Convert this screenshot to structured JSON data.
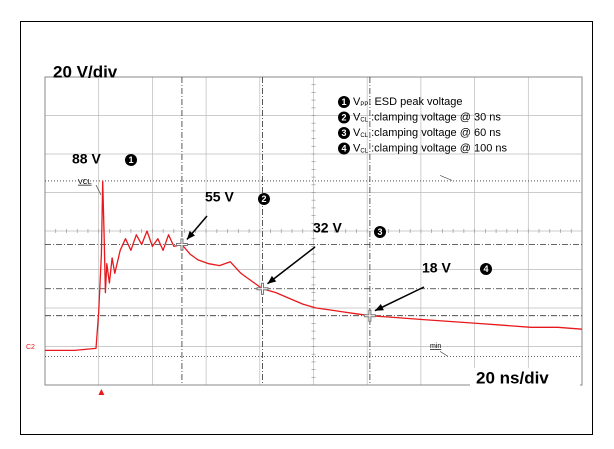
{
  "chart_data": {
    "type": "line",
    "y_scale_label": "20 V/div",
    "x_scale_label": "20 ns/div",
    "xlim": [
      -21,
      179
    ],
    "ylim": [
      -18,
      142
    ],
    "x": [
      -21,
      -10,
      -2,
      -1,
      0,
      0.5,
      1,
      1.5,
      2,
      3,
      4,
      5,
      7,
      9,
      11,
      13,
      15,
      17,
      19,
      21,
      23,
      25,
      27,
      30,
      33,
      36,
      40,
      44,
      48,
      52,
      56,
      60,
      65,
      70,
      75,
      80,
      85,
      90,
      95,
      100,
      110,
      120,
      130,
      140,
      150,
      160,
      170,
      179
    ],
    "series": [
      {
        "name": "C2",
        "color": "#e8191c",
        "values": [
          0,
          0,
          1,
          20,
          50,
          88,
          60,
          30,
          45,
          35,
          48,
          40,
          52,
          58,
          52,
          60,
          55,
          62,
          54,
          58,
          52,
          60,
          54,
          55,
          50,
          47,
          45,
          44,
          46,
          40,
          36,
          32,
          30,
          27,
          24,
          22,
          21,
          20,
          19,
          18,
          17,
          16,
          15,
          14,
          13,
          12,
          12,
          11
        ]
      }
    ],
    "reference_labels": {
      "peak": "VCL",
      "minimum": "min"
    },
    "annotations": [
      {
        "label": "88 V",
        "marker": "1",
        "value": 88,
        "time": 0
      },
      {
        "label": "55 V",
        "marker": "2",
        "value": 55,
        "time": 30
      },
      {
        "label": "32 V",
        "marker": "3",
        "value": 32,
        "time": 60
      },
      {
        "label": "18 V",
        "marker": "4",
        "value": 18,
        "time": 100
      }
    ],
    "legend": [
      {
        "marker": "1",
        "symbol": "V",
        "sub": "PP",
        "text": ": ESD peak voltage"
      },
      {
        "marker": "2",
        "symbol": "V",
        "sub": "CL",
        "text": " :clamping voltage @ 30 ns"
      },
      {
        "marker": "3",
        "symbol": "V",
        "sub": "CL",
        "text": " :clamping voltage @ 60 ns"
      },
      {
        "marker": "4",
        "symbol": "V",
        "sub": "CL",
        "text": " :clamping voltage @ 100 ns"
      }
    ]
  }
}
